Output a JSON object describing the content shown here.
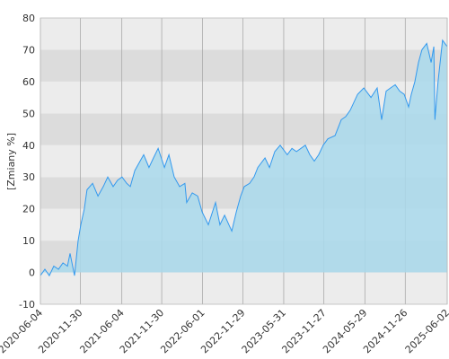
{
  "chart_data": {
    "type": "area",
    "ylabel": "[Zmiany %]",
    "x": [
      "2020-06-04",
      "2020-06-24",
      "2020-07-14",
      "2020-08-03",
      "2020-08-24",
      "2020-09-13",
      "2020-10-03",
      "2020-10-15",
      "2020-11-04",
      "2020-11-20",
      "2020-12-02",
      "2020-12-18",
      "2020-12-30",
      "2021-01-24",
      "2021-02-17",
      "2021-03-13",
      "2021-04-02",
      "2021-04-26",
      "2021-05-16",
      "2021-06-05",
      "2021-06-26",
      "2021-07-12",
      "2021-08-01",
      "2021-08-25",
      "2021-09-10",
      "2021-10-04",
      "2021-10-24",
      "2021-11-14",
      "2021-12-12",
      "2022-01-01",
      "2022-01-25",
      "2022-02-18",
      "2022-03-14",
      "2022-03-22",
      "2022-04-16",
      "2022-05-10",
      "2022-05-30",
      "2022-06-27",
      "2022-07-29",
      "2022-08-18",
      "2022-09-08",
      "2022-10-10",
      "2022-10-30",
      "2022-11-19",
      "2022-12-05",
      "2022-12-29",
      "2023-01-18",
      "2023-02-04",
      "2023-03-08",
      "2023-03-28",
      "2023-04-21",
      "2023-05-15",
      "2023-06-16",
      "2023-07-07",
      "2023-07-27",
      "2023-09-05",
      "2023-09-25",
      "2023-10-15",
      "2023-11-04",
      "2023-11-24",
      "2023-12-15",
      "2024-01-16",
      "2024-02-13",
      "2024-03-04",
      "2024-03-24",
      "2024-04-26",
      "2024-05-24",
      "2024-06-25",
      "2024-07-23",
      "2024-08-12",
      "2024-09-01",
      "2024-09-21",
      "2024-10-12",
      "2024-11-01",
      "2024-11-21",
      "2024-12-11",
      "2024-12-23",
      "2025-01-08",
      "2025-01-24",
      "2025-02-09",
      "2025-03-02",
      "2025-03-22",
      "2025-04-03",
      "2025-04-08",
      "2025-04-22",
      "2025-05-12",
      "2025-06-02"
    ],
    "series": [
      {
        "color": "#3399ee",
        "fill": "#a9d9ec",
        "values": [
          -1,
          1,
          -1,
          2,
          1,
          3,
          2,
          6,
          -1,
          10,
          15,
          20,
          26,
          28,
          24,
          27,
          30,
          27,
          29,
          30,
          28,
          27,
          32,
          35,
          37,
          33,
          36,
          39,
          33,
          37,
          30,
          27,
          28,
          22,
          25,
          24,
          19,
          15,
          22,
          15,
          18,
          13,
          19,
          24,
          27,
          28,
          30,
          33,
          36,
          33,
          38,
          40,
          37,
          39,
          38,
          40,
          37,
          35,
          37,
          40,
          42,
          43,
          48,
          49,
          51,
          56,
          58,
          55,
          58,
          48,
          57,
          58,
          59,
          57,
          56,
          52,
          56,
          60,
          66,
          70,
          72,
          66,
          71,
          48,
          60,
          73,
          71
        ]
      }
    ],
    "xlim": [
      "2020-06-04",
      "2025-06-02"
    ],
    "xticks": [
      "2020-06-04",
      "2020-11-30",
      "2021-06-04",
      "2021-11-30",
      "2022-06-01",
      "2022-11-29",
      "2023-05-31",
      "2023-11-27",
      "2024-05-29",
      "2024-11-26",
      "2025-06-02"
    ],
    "ylim": [
      -10,
      80
    ],
    "yticks": [
      -10,
      0,
      10,
      20,
      30,
      40,
      50,
      60,
      70,
      80
    ],
    "grid": true
  }
}
